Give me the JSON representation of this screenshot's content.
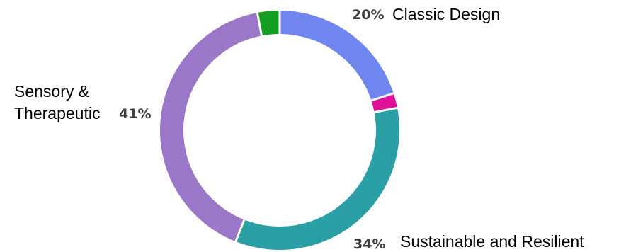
{
  "chart_data": {
    "type": "pie",
    "variant": "donut",
    "title": "",
    "start_angle_deg": 0,
    "direction": "clockwise",
    "slices": [
      {
        "key": "classic",
        "label": "Classic Design",
        "value": 20,
        "value_label": "20%",
        "color": "#6f85f0"
      },
      {
        "key": "unlabeled_pink",
        "label": "",
        "value": 2,
        "value_label": "",
        "color": "#e0109a"
      },
      {
        "key": "sustainable",
        "label": "Sustainable and Resilient",
        "value": 34,
        "value_label": "34%",
        "color": "#2aa0a6"
      },
      {
        "key": "sensory",
        "label": [
          "Sensory &",
          "Therapeutic"
        ],
        "value": 41,
        "value_label": "41%",
        "color": "#9b77c9"
      },
      {
        "key": "unlabeled_green",
        "label": "",
        "value": 3,
        "value_label": "",
        "color": "#159f22"
      }
    ],
    "legend": "none"
  }
}
